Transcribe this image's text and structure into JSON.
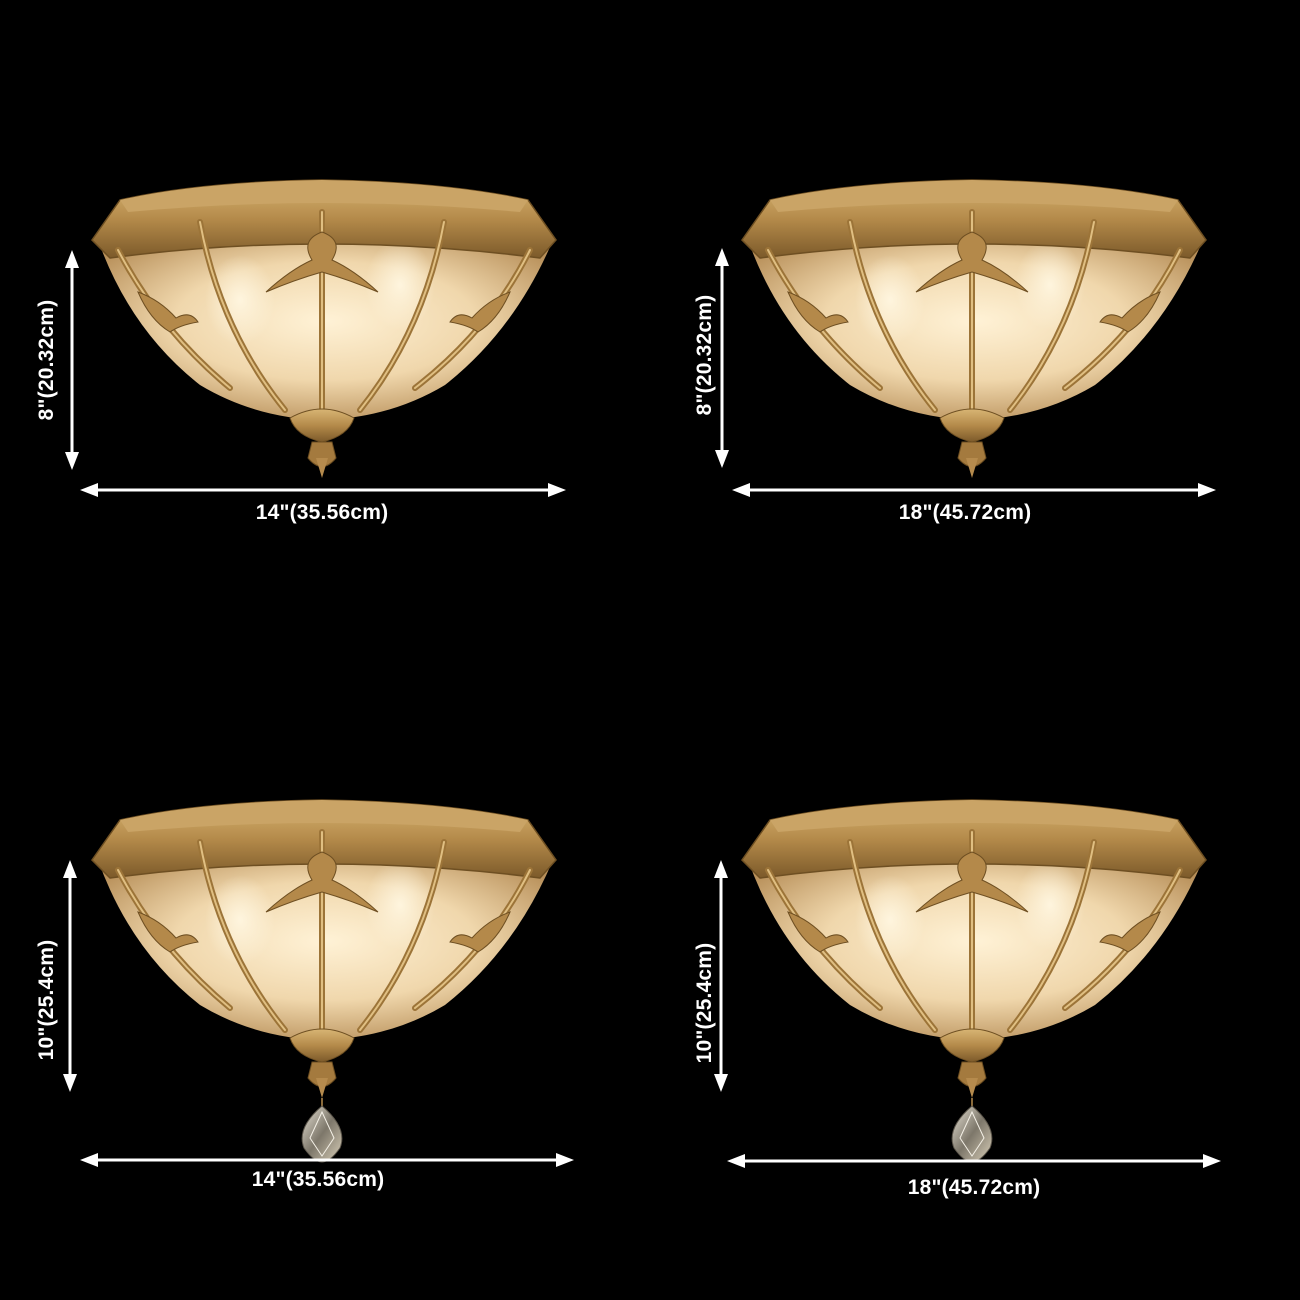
{
  "background": "#000000",
  "brass_color": "#b8924e",
  "glass_color": "#f2dcb4",
  "panels": [
    {
      "height_label": "8\"(20.32cm)",
      "width_label": "14\"(35.56cm)",
      "has_crystal": false
    },
    {
      "height_label": "8\"(20.32cm)",
      "width_label": "18\"(45.72cm)",
      "has_crystal": false
    },
    {
      "height_label": "10\"(25.4cm)",
      "width_label": "14\"(35.56cm)",
      "has_crystal": true
    },
    {
      "height_label": "10\"(25.4cm)",
      "width_label": "18\"(45.72cm)",
      "has_crystal": true
    }
  ]
}
